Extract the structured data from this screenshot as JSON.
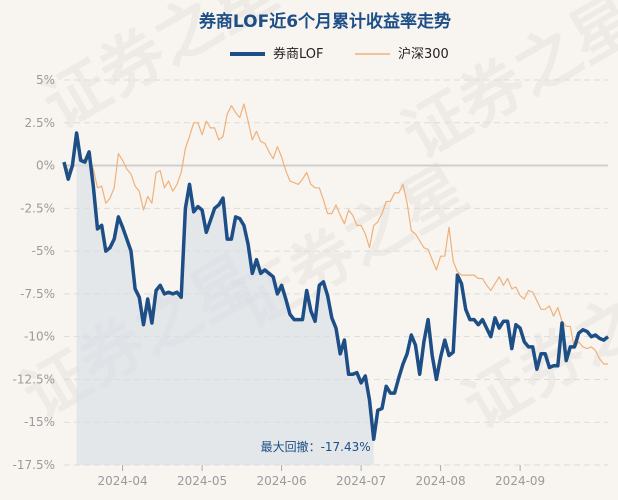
{
  "chart_data": {
    "type": "line",
    "title": "券商LOF近6个月累计收益率走势",
    "ylim": [
      -17.5,
      5
    ],
    "yticks": [
      5,
      2.5,
      0,
      -2.5,
      -5,
      -7.5,
      -10,
      -12.5,
      -15,
      -17.5
    ],
    "ytick_labels": [
      "5%",
      "2.5%",
      "0%",
      "-2.5%",
      "-5%",
      "-7.5%",
      "-10%",
      "-12.5%",
      "-15%",
      "-17.5%"
    ],
    "xlim": [
      0,
      130
    ],
    "xticks": [
      14,
      33,
      52,
      71,
      90,
      109
    ],
    "xtick_labels": [
      "2024-04",
      "2024-05",
      "2024-06",
      "2024-07",
      "2024-08",
      "2024-09"
    ],
    "grid": true,
    "legend_position": "top",
    "series": [
      {
        "name": "券商LOF",
        "color": "#1d4e86",
        "values": [
          0.2,
          -0.8,
          0,
          1.9,
          0.3,
          0.2,
          0.8,
          -1.2,
          -3.7,
          -3.5,
          -5,
          -4.8,
          -4.3,
          -3,
          -3.6,
          -4.3,
          -5,
          -7.2,
          -7.7,
          -9.3,
          -7.8,
          -9.2,
          -7.3,
          -7,
          -7.5,
          -7.4,
          -7.5,
          -7.4,
          -7.7,
          -2.5,
          -1.1,
          -2.7,
          -2.4,
          -2.6,
          -3.9,
          -3.2,
          -2.5,
          -2.3,
          -1.9,
          -4.3,
          -4.3,
          -3,
          -3.1,
          -3.5,
          -4.6,
          -6.3,
          -5.5,
          -6.3,
          -6.1,
          -6.3,
          -6.5,
          -7.5,
          -7,
          -7.8,
          -8.7,
          -9,
          -9,
          -9,
          -7.3,
          -8.5,
          -9.1,
          -7,
          -6.8,
          -7.6,
          -8.9,
          -9.5,
          -11,
          -10.2,
          -12.2,
          -12.2,
          -12.1,
          -12.7,
          -12.3,
          -13.7,
          -16,
          -14.3,
          -14.2,
          -12.9,
          -13.3,
          -13.3,
          -12.4,
          -11.6,
          -11,
          -9.9,
          -10.5,
          -12.2,
          -10.3,
          -9,
          -11.1,
          -12.5,
          -11.2,
          -10.2,
          -11.1,
          -10.9,
          -6.4,
          -6.9,
          -8.4,
          -9,
          -9,
          -9.3,
          -9,
          -9.5,
          -10,
          -8.9,
          -9.5,
          -9.1,
          -9.1,
          -10.7,
          -9.3,
          -9.5,
          -10.3,
          -10.6,
          -10.6,
          -11.9,
          -11,
          -11,
          -11.8,
          -11.7,
          -11.7,
          -9.2,
          -11.4,
          -10.6,
          -10.6,
          -9.8,
          -9.6,
          -9.7,
          -10,
          -9.9,
          -10.1,
          -10.2,
          -10
        ]
      },
      {
        "name": "沪深300",
        "color": "#f0b07a",
        "values": [
          0.2,
          -0.3,
          0,
          1.3,
          0.5,
          0.2,
          0.5,
          -0.2,
          -1.3,
          -1.2,
          -2.2,
          -1.9,
          -1.3,
          0.7,
          0.3,
          -0.2,
          -0.5,
          -1.2,
          -1.5,
          -2.6,
          -1.8,
          -2.2,
          -0.4,
          -0.3,
          -1.3,
          -0.9,
          -1.5,
          -1.1,
          -0.4,
          1,
          1.7,
          2.5,
          2.5,
          1.8,
          2.6,
          2.2,
          2.2,
          1.5,
          1.7,
          3,
          3.5,
          3.1,
          2.8,
          3.6,
          2.6,
          1.5,
          2,
          1.4,
          1.3,
          0.8,
          0.4,
          1.1,
          0.5,
          -0.3,
          -0.9,
          -1,
          -1.1,
          -0.8,
          -0.4,
          -1.1,
          -1.3,
          -1.3,
          -2,
          -2.8,
          -2.8,
          -2.3,
          -2.9,
          -3.4,
          -2.6,
          -2.9,
          -3.5,
          -3.5,
          -4,
          -4.8,
          -3.5,
          -3.3,
          -2.8,
          -2.1,
          -2.1,
          -1.6,
          -1.6,
          -1.1,
          -2.2,
          -3.8,
          -4,
          -4.4,
          -4.8,
          -4.9,
          -5.5,
          -6.1,
          -5.3,
          -5.3,
          -3.6,
          -5.6,
          -6.2,
          -6.4,
          -6.4,
          -6.4,
          -6.4,
          -6.6,
          -6.6,
          -7,
          -7.3,
          -6.9,
          -6.5,
          -7,
          -6.6,
          -7.2,
          -7.1,
          -7.6,
          -7.8,
          -7.3,
          -7.4,
          -7.9,
          -8.4,
          -8.4,
          -8.2,
          -8.8,
          -8.3,
          -9.1,
          -9.4,
          -9.4,
          -10.7,
          -10.3,
          -10.6,
          -10.7,
          -10.6,
          -10.8,
          -11.3,
          -11.6,
          -11.6
        ]
      }
    ],
    "shade_from_index": 3,
    "shade_to_index": 74,
    "annotation": {
      "text": "最大回撤：-17.43%",
      "index": 74
    }
  },
  "watermark": "证券之星"
}
